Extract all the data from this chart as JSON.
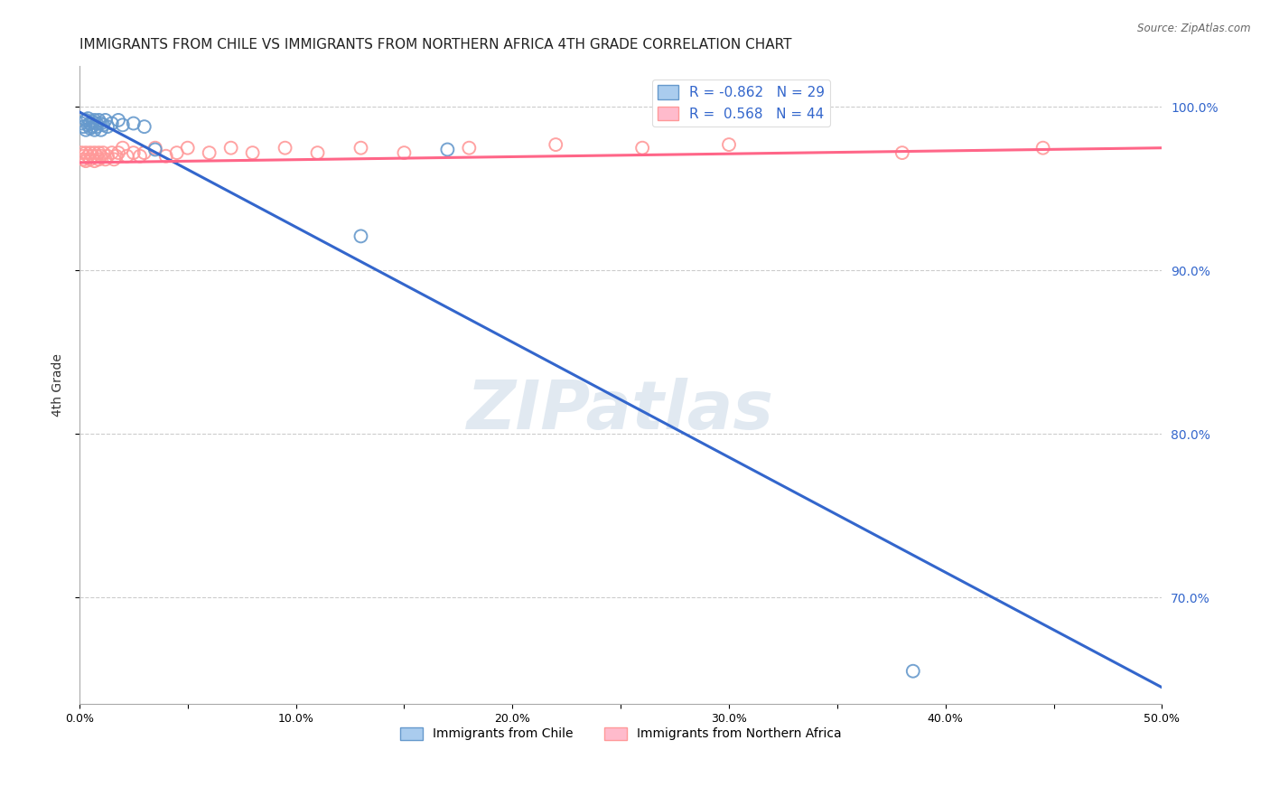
{
  "title": "IMMIGRANTS FROM CHILE VS IMMIGRANTS FROM NORTHERN AFRICA 4TH GRADE CORRELATION CHART",
  "source": "Source: ZipAtlas.com",
  "ylabel": "4th Grade",
  "xlim": [
    0.0,
    0.5
  ],
  "ylim": [
    0.635,
    1.025
  ],
  "xtick_labels": [
    "0.0%",
    "",
    "10.0%",
    "",
    "20.0%",
    "",
    "30.0%",
    "",
    "40.0%",
    "",
    "50.0%"
  ],
  "xtick_vals": [
    0.0,
    0.05,
    0.1,
    0.15,
    0.2,
    0.25,
    0.3,
    0.35,
    0.4,
    0.45,
    0.5
  ],
  "ytick_vals": [
    0.7,
    0.8,
    0.9,
    1.0
  ],
  "ytick_labels_right": [
    "70.0%",
    "80.0%",
    "90.0%",
    "100.0%"
  ],
  "blue_color": "#6699CC",
  "pink_color": "#FF9999",
  "blue_line_color": "#3366CC",
  "pink_line_color": "#FF6688",
  "legend_R_blue": "-0.862",
  "legend_N_blue": "29",
  "legend_R_pink": "0.568",
  "legend_N_pink": "44",
  "legend_label_blue": "Immigrants from Chile",
  "legend_label_pink": "Immigrants from Northern Africa",
  "watermark": "ZIPatlas",
  "blue_scatter_x": [
    0.001,
    0.002,
    0.003,
    0.003,
    0.004,
    0.004,
    0.005,
    0.005,
    0.006,
    0.006,
    0.007,
    0.007,
    0.008,
    0.008,
    0.009,
    0.01,
    0.01,
    0.011,
    0.012,
    0.013,
    0.015,
    0.018,
    0.02,
    0.025,
    0.03,
    0.035,
    0.13,
    0.17,
    0.385
  ],
  "blue_scatter_y": [
    0.99,
    0.988,
    0.992,
    0.986,
    0.989,
    0.993,
    0.99,
    0.987,
    0.991,
    0.988,
    0.992,
    0.986,
    0.99,
    0.988,
    0.992,
    0.99,
    0.986,
    0.989,
    0.992,
    0.988,
    0.99,
    0.992,
    0.989,
    0.99,
    0.988,
    0.974,
    0.921,
    0.974,
    0.655
  ],
  "pink_scatter_x": [
    0.001,
    0.002,
    0.002,
    0.003,
    0.003,
    0.004,
    0.005,
    0.005,
    0.006,
    0.007,
    0.007,
    0.008,
    0.009,
    0.009,
    0.01,
    0.011,
    0.012,
    0.013,
    0.015,
    0.016,
    0.017,
    0.018,
    0.02,
    0.022,
    0.025,
    0.028,
    0.03,
    0.035,
    0.04,
    0.045,
    0.05,
    0.06,
    0.07,
    0.08,
    0.095,
    0.11,
    0.13,
    0.15,
    0.18,
    0.22,
    0.26,
    0.3,
    0.38,
    0.445
  ],
  "pink_scatter_y": [
    0.972,
    0.97,
    0.968,
    0.972,
    0.967,
    0.97,
    0.972,
    0.968,
    0.97,
    0.972,
    0.967,
    0.97,
    0.972,
    0.968,
    0.97,
    0.972,
    0.968,
    0.97,
    0.972,
    0.968,
    0.97,
    0.972,
    0.975,
    0.97,
    0.972,
    0.97,
    0.972,
    0.975,
    0.97,
    0.972,
    0.975,
    0.972,
    0.975,
    0.972,
    0.975,
    0.972,
    0.975,
    0.972,
    0.975,
    0.977,
    0.975,
    0.977,
    0.972,
    0.975
  ],
  "blue_line_x": [
    0.0,
    0.5
  ],
  "blue_line_y": [
    0.997,
    0.645
  ],
  "pink_line_x": [
    0.0,
    0.5
  ],
  "pink_line_y": [
    0.966,
    0.975
  ],
  "background_color": "#FFFFFF",
  "grid_color": "#CCCCCC",
  "title_fontsize": 11,
  "axis_fontsize": 9,
  "marker_size": 100,
  "marker_linewidth": 1.4
}
